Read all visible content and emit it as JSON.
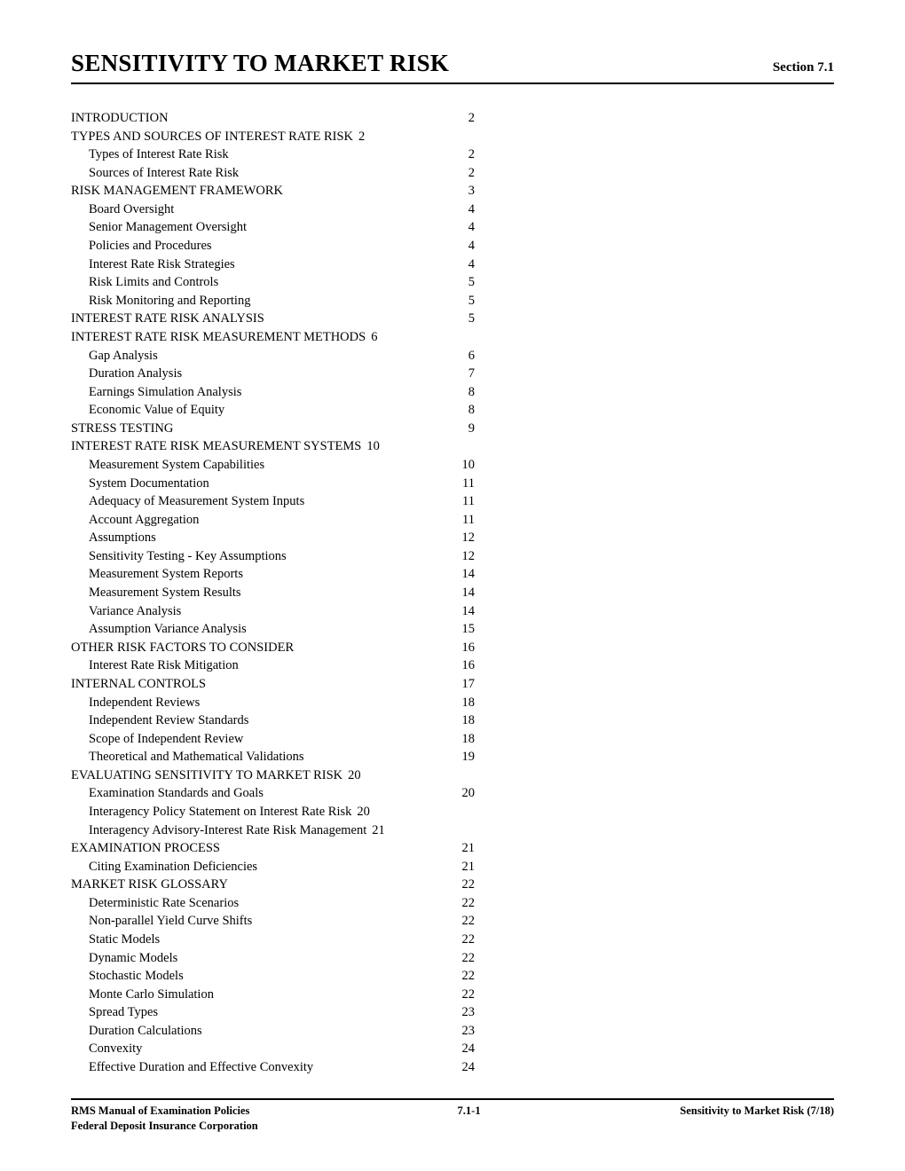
{
  "header": {
    "title": "SENSITIVITY TO MARKET RISK",
    "section": "Section 7.1"
  },
  "toc": [
    {
      "level": 0,
      "label": "INTRODUCTION",
      "page": "2"
    },
    {
      "level": 0,
      "label": "TYPES AND SOURCES OF INTEREST RATE RISK",
      "page": "2",
      "tight": true
    },
    {
      "level": 1,
      "label": "Types of Interest Rate Risk",
      "page": "2"
    },
    {
      "level": 1,
      "label": "Sources of Interest Rate Risk",
      "page": "2"
    },
    {
      "level": 0,
      "label": "RISK MANAGEMENT FRAMEWORK",
      "page": "3"
    },
    {
      "level": 1,
      "label": "Board Oversight",
      "page": "4"
    },
    {
      "level": 1,
      "label": "Senior Management Oversight",
      "page": "4"
    },
    {
      "level": 1,
      "label": "Policies and Procedures",
      "page": "4"
    },
    {
      "level": 1,
      "label": "Interest Rate Risk Strategies",
      "page": "4"
    },
    {
      "level": 1,
      "label": "Risk Limits and Controls",
      "page": "5"
    },
    {
      "level": 1,
      "label": "Risk Monitoring and Reporting",
      "page": "5"
    },
    {
      "level": 0,
      "label": "INTEREST RATE RISK ANALYSIS",
      "page": "5"
    },
    {
      "level": 0,
      "label": "INTEREST RATE RISK MEASUREMENT METHODS",
      "page": "6",
      "tight": true
    },
    {
      "level": 1,
      "label": "Gap Analysis",
      "page": "6"
    },
    {
      "level": 1,
      "label": "Duration Analysis",
      "page": "7"
    },
    {
      "level": 1,
      "label": "Earnings Simulation Analysis",
      "page": "8"
    },
    {
      "level": 1,
      "label": "Economic Value of Equity",
      "page": "8"
    },
    {
      "level": 0,
      "label": "STRESS TESTING",
      "page": "9"
    },
    {
      "level": 0,
      "label": "INTEREST RATE RISK MEASUREMENT SYSTEMS",
      "page": "10",
      "tight": true
    },
    {
      "level": 1,
      "label": "Measurement System Capabilities",
      "page": "10"
    },
    {
      "level": 1,
      "label": "System Documentation",
      "page": "11"
    },
    {
      "level": 1,
      "label": "Adequacy of Measurement System Inputs",
      "page": "11"
    },
    {
      "level": 1,
      "label": "Account Aggregation",
      "page": "11"
    },
    {
      "level": 1,
      "label": "Assumptions",
      "page": "12"
    },
    {
      "level": 1,
      "label": "Sensitivity Testing - Key Assumptions",
      "page": "12"
    },
    {
      "level": 1,
      "label": "Measurement System Reports",
      "page": "14"
    },
    {
      "level": 1,
      "label": "Measurement System Results",
      "page": "14"
    },
    {
      "level": 1,
      "label": "Variance Analysis",
      "page": "14"
    },
    {
      "level": 1,
      "label": "Assumption Variance Analysis",
      "page": "15"
    },
    {
      "level": 0,
      "label": "OTHER RISK FACTORS TO CONSIDER",
      "page": "16"
    },
    {
      "level": 1,
      "label": "Interest Rate Risk Mitigation",
      "page": "16"
    },
    {
      "level": 0,
      "label": "INTERNAL CONTROLS",
      "page": "17"
    },
    {
      "level": 1,
      "label": "Independent Reviews",
      "page": "18"
    },
    {
      "level": 1,
      "label": "Independent Review Standards",
      "page": "18"
    },
    {
      "level": 1,
      "label": "Scope of Independent Review",
      "page": "18"
    },
    {
      "level": 1,
      "label": "Theoretical and Mathematical Validations",
      "page": "19"
    },
    {
      "level": 0,
      "label": "EVALUATING SENSITIVITY TO MARKET RISK",
      "page": "20",
      "tight": true
    },
    {
      "level": 1,
      "label": "Examination Standards and Goals",
      "page": "20"
    },
    {
      "level": 1,
      "label": "Interagency Policy Statement on Interest Rate Risk",
      "page": "20",
      "tight": true
    },
    {
      "level": 1,
      "label": "Interagency Advisory-Interest Rate Risk Management",
      "page": "21",
      "tight": true
    },
    {
      "level": 0,
      "label": "EXAMINATION PROCESS",
      "page": "21"
    },
    {
      "level": 1,
      "label": "Citing Examination Deficiencies",
      "page": "21"
    },
    {
      "level": 0,
      "label": "MARKET RISK GLOSSARY",
      "page": "22"
    },
    {
      "level": 1,
      "label": "Deterministic Rate Scenarios",
      "page": "22"
    },
    {
      "level": 1,
      "label": "Non-parallel Yield Curve Shifts",
      "page": "22"
    },
    {
      "level": 1,
      "label": "Static Models",
      "page": "22"
    },
    {
      "level": 1,
      "label": "Dynamic Models",
      "page": "22"
    },
    {
      "level": 1,
      "label": "Stochastic Models",
      "page": "22"
    },
    {
      "level": 1,
      "label": "Monte Carlo Simulation",
      "page": "22"
    },
    {
      "level": 1,
      "label": "Spread Types",
      "page": "23"
    },
    {
      "level": 1,
      "label": "Duration Calculations",
      "page": "23"
    },
    {
      "level": 1,
      "label": "Convexity",
      "page": "24"
    },
    {
      "level": 1,
      "label": "Effective Duration and Effective Convexity",
      "page": "24"
    }
  ],
  "footer": {
    "left_line1": "RMS Manual of Examination Policies",
    "left_line2": "Federal Deposit Insurance Corporation",
    "center": "7.1-1",
    "right": "Sensitivity to Market Risk (7/18)"
  }
}
